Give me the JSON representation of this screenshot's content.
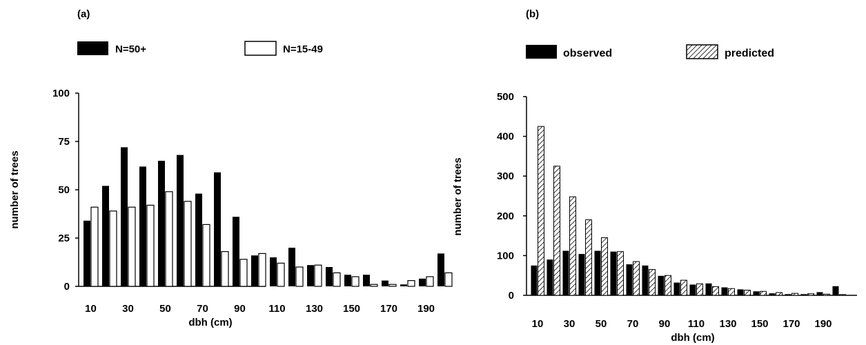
{
  "chart_data": [
    {
      "type": "bar",
      "panel_label": "(a)",
      "title": "",
      "xlabel": "dbh (cm)",
      "ylabel": "number of trees",
      "ylim": [
        0,
        100
      ],
      "yticks": [
        0,
        25,
        50,
        75,
        100
      ],
      "x_tick_labels": [
        "10",
        "30",
        "50",
        "70",
        "90",
        "110",
        "130",
        "150",
        "170",
        "190"
      ],
      "categories": [
        10,
        20,
        30,
        40,
        50,
        60,
        70,
        80,
        90,
        100,
        110,
        120,
        130,
        140,
        150,
        160,
        170,
        180,
        190,
        200
      ],
      "series": [
        {
          "name": "N=50+",
          "fill": "solid",
          "values": [
            34,
            52,
            72,
            62,
            65,
            68,
            48,
            59,
            36,
            16,
            15,
            20,
            11,
            10,
            6,
            6,
            3,
            1,
            4,
            17
          ]
        },
        {
          "name": "N=15-49",
          "fill": "open",
          "values": [
            41,
            39,
            41,
            42,
            49,
            44,
            32,
            18,
            14,
            17,
            12,
            10,
            11,
            7,
            5,
            1,
            1,
            3,
            5,
            7
          ]
        }
      ],
      "legend": "top"
    },
    {
      "type": "bar",
      "panel_label": "(b)",
      "title": "",
      "xlabel": "dbh (cm)",
      "ylabel": "number of trees",
      "ylim": [
        0,
        500
      ],
      "yticks": [
        0,
        100,
        200,
        300,
        400,
        500
      ],
      "x_tick_labels": [
        "10",
        "30",
        "50",
        "70",
        "90",
        "110",
        "130",
        "150",
        "170",
        "190"
      ],
      "categories": [
        10,
        20,
        30,
        40,
        50,
        60,
        70,
        80,
        90,
        100,
        110,
        120,
        130,
        140,
        150,
        160,
        170,
        180,
        190,
        200
      ],
      "series": [
        {
          "name": "observed",
          "fill": "solid",
          "values": [
            75,
            90,
            112,
            104,
            112,
            110,
            78,
            75,
            49,
            32,
            27,
            30,
            20,
            15,
            10,
            5,
            3,
            3,
            8,
            23
          ]
        },
        {
          "name": "predicted",
          "fill": "hatched",
          "values": [
            425,
            325,
            248,
            190,
            145,
            110,
            85,
            65,
            50,
            38,
            29,
            22,
            17,
            13,
            10,
            7,
            5,
            4,
            3,
            2
          ]
        }
      ],
      "legend": "top"
    }
  ]
}
